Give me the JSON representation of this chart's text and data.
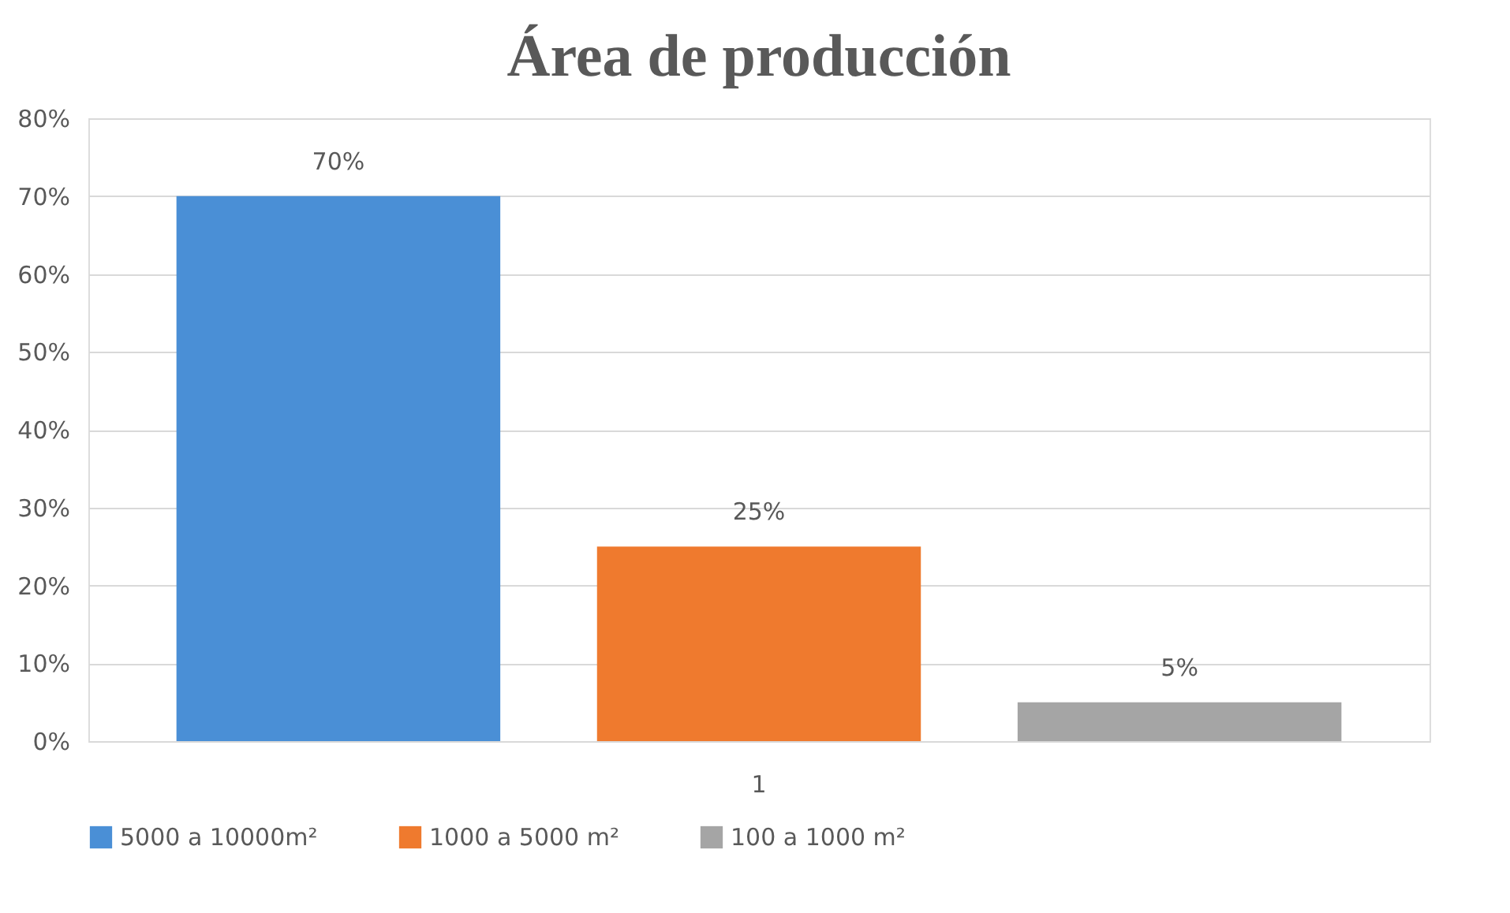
{
  "chart_data": {
    "type": "bar",
    "title": "Área de producción",
    "categories": [
      "1"
    ],
    "series": [
      {
        "name": "5000 a 10000m²",
        "color": "#4a8fd6",
        "values": [
          70
        ],
        "value_labels": [
          "70%"
        ]
      },
      {
        "name": "1000 a 5000 m²",
        "color": "#ef7a2e",
        "values": [
          25
        ],
        "value_labels": [
          "25%"
        ]
      },
      {
        "name": "100 a 1000 m²",
        "color": "#a5a5a5",
        "values": [
          5
        ],
        "value_labels": [
          "5%"
        ]
      }
    ],
    "ylim": [
      0,
      80
    ],
    "yticks": [
      {
        "value": 0,
        "label": "0%"
      },
      {
        "value": 10,
        "label": "10%"
      },
      {
        "value": 20,
        "label": "20%"
      },
      {
        "value": 30,
        "label": "30%"
      },
      {
        "value": 40,
        "label": "40%"
      },
      {
        "value": 50,
        "label": "50%"
      },
      {
        "value": 60,
        "label": "60%"
      },
      {
        "value": 70,
        "label": "70%"
      },
      {
        "value": 80,
        "label": "80%"
      }
    ],
    "grid": "y",
    "legend": "bottom"
  }
}
